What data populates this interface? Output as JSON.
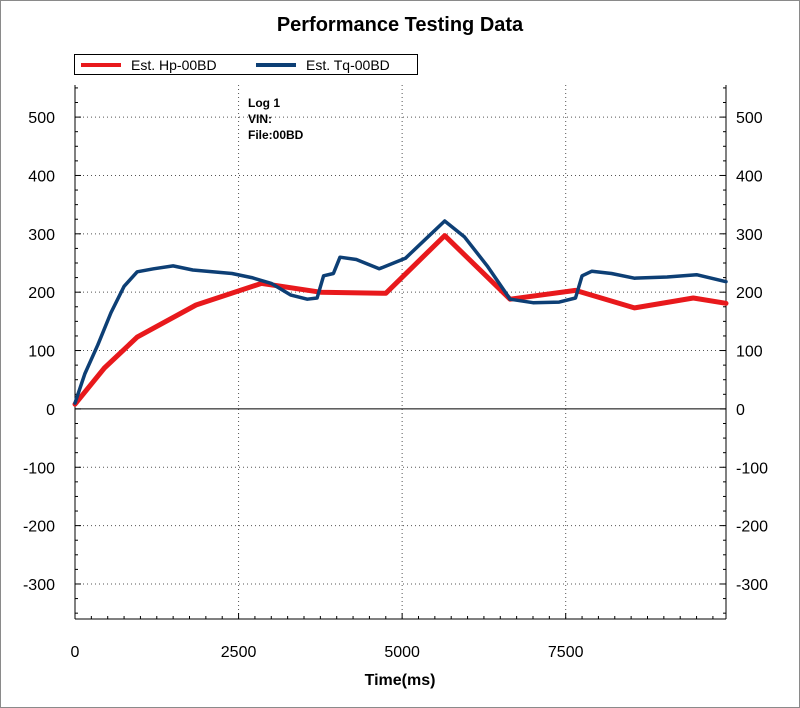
{
  "chart_data": {
    "type": "line",
    "title": "Performance Testing Data",
    "xlabel": "Time(ms)",
    "ylabel": "",
    "xlim": [
      0,
      9950
    ],
    "ylim": [
      -360,
      555
    ],
    "x_ticks": [
      0,
      2500,
      5000,
      7500
    ],
    "y_ticks": [
      500,
      400,
      300,
      200,
      100,
      0,
      -100,
      -200,
      -300
    ],
    "grid": true,
    "legend_position": "top-left",
    "annotation": [
      "Log 1",
      "VIN:",
      "File:00BD"
    ],
    "series": [
      {
        "name": "Est. Hp-00BD",
        "color": "#e8191c",
        "x": [
          0,
          450,
          950,
          1850,
          2850,
          3750,
          4750,
          5650,
          6650,
          7650,
          8550,
          9450,
          9950
        ],
        "y": [
          8,
          70,
          123,
          178,
          215,
          200,
          198,
          297,
          188,
          203,
          173,
          190,
          181
        ]
      },
      {
        "name": "Est. Tq-00BD",
        "color": "#0d3f75",
        "x": [
          0,
          150,
          350,
          550,
          750,
          950,
          1200,
          1500,
          1800,
          2100,
          2400,
          2700,
          3000,
          3300,
          3550,
          3700,
          3800,
          3950,
          4050,
          4300,
          4650,
          5050,
          5350,
          5650,
          5950,
          6300,
          6650,
          7000,
          7400,
          7650,
          7750,
          7900,
          8200,
          8550,
          9050,
          9500,
          9950
        ],
        "y": [
          10,
          60,
          110,
          165,
          210,
          235,
          240,
          245,
          238,
          235,
          232,
          225,
          215,
          195,
          188,
          190,
          228,
          232,
          260,
          256,
          240,
          258,
          290,
          322,
          295,
          245,
          188,
          182,
          183,
          190,
          228,
          236,
          232,
          224,
          226,
          230,
          218
        ]
      }
    ]
  }
}
